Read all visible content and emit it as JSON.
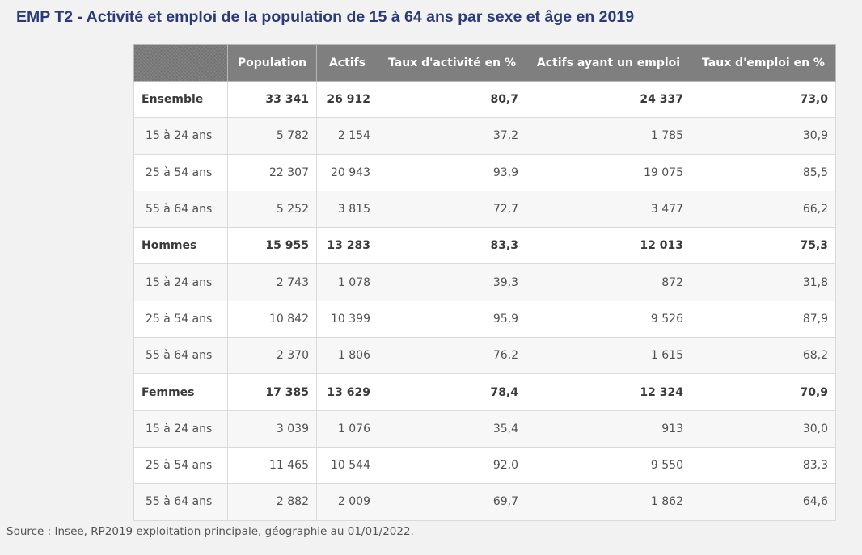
{
  "title": "EMP T2 - Activité et emploi de la population de 15 à 64 ans par sexe et âge en 2019",
  "table": {
    "columns": [
      "",
      "Population",
      "Actifs",
      "Taux d'activité en %",
      "Actifs ayant un emploi",
      "Taux d'emploi en %"
    ],
    "rows": [
      [
        "Ensemble",
        "33 341",
        "26 912",
        "80,7",
        "24 337",
        "73,0"
      ],
      [
        "15 à 24 ans",
        "5 782",
        "2 154",
        "37,2",
        "1 785",
        "30,9"
      ],
      [
        "25 à 54 ans",
        "22 307",
        "20 943",
        "93,9",
        "19 075",
        "85,5"
      ],
      [
        "55 à 64 ans",
        "5 252",
        "3 815",
        "72,7",
        "3 477",
        "66,2"
      ],
      [
        "Hommes",
        "15 955",
        "13 283",
        "83,3",
        "12 013",
        "75,3"
      ],
      [
        "15 à 24 ans",
        "2 743",
        "1 078",
        "39,3",
        "872",
        "31,8"
      ],
      [
        "25 à 54 ans",
        "10 842",
        "10 399",
        "95,9",
        "9 526",
        "87,9"
      ],
      [
        "55 à 64 ans",
        "2 370",
        "1 806",
        "76,2",
        "1 615",
        "68,2"
      ],
      [
        "Femmes",
        "17 385",
        "13 629",
        "78,4",
        "12 324",
        "70,9"
      ],
      [
        "15 à 24 ans",
        "3 039",
        "1 076",
        "35,4",
        "913",
        "30,0"
      ],
      [
        "25 à 54 ans",
        "11 465",
        "10 544",
        "92,0",
        "9 550",
        "83,3"
      ],
      [
        "55 à 64 ans",
        "2 882",
        "2 009",
        "69,7",
        "1 862",
        "64,6"
      ]
    ]
  },
  "source": "Source : Insee, RP2019 exploitation principale, géographie au 01/01/2022.",
  "colors": {
    "title": "#2c3a78",
    "header_bg": "#7f7f7f",
    "header_text": "#ffffff",
    "row_bg": "#ffffff",
    "row_alt_bg": "#f7f7f7"
  }
}
